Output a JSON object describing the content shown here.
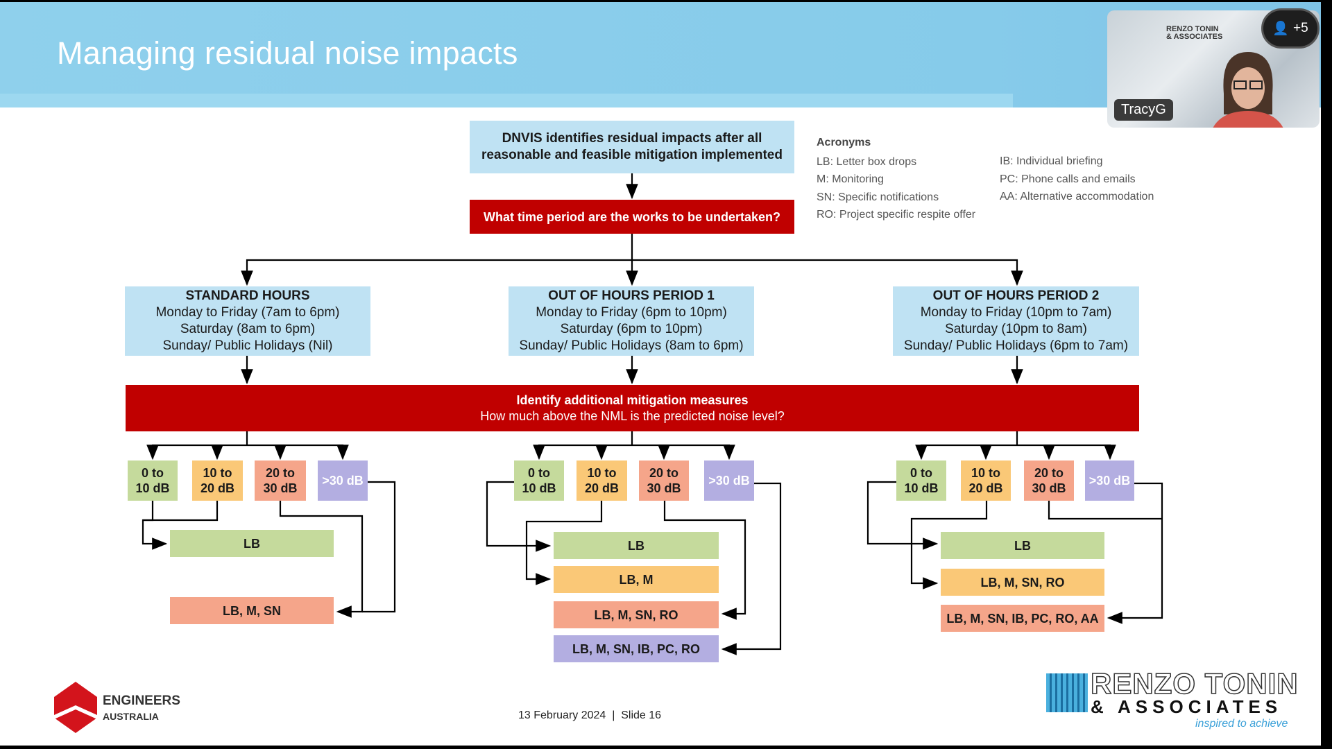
{
  "slide": {
    "title": "Managing residual noise impacts",
    "top_box": "DNVIS identifies residual impacts after all reasonable and feasible mitigation implemented",
    "question": "What time period are the works to be undertaken?",
    "periods": [
      {
        "title": "STANDARD HOURS",
        "lines": [
          "Monday to Friday (7am to 6pm)",
          "Saturday (8am to 6pm)",
          "Sunday/ Public Holidays (Nil)"
        ]
      },
      {
        "title": "OUT OF HOURS PERIOD 1",
        "lines": [
          "Monday to Friday (6pm to 10pm)",
          "Saturday (6pm to 10pm)",
          "Sunday/ Public Holidays (8am to 6pm)"
        ]
      },
      {
        "title": "OUT OF HOURS PERIOD 2",
        "lines": [
          "Monday to Friday (10pm to 7am)",
          "Saturday (10pm to 8am)",
          "Sunday/ Public Holidays (6pm to 7am)"
        ]
      }
    ],
    "mitigation": {
      "title": "Identify additional mitigation measures",
      "subtitle": "How much above the NML is the predicted noise level?"
    },
    "ranges": [
      [
        "0 to",
        "10 dB"
      ],
      [
        "10 to",
        "20 dB"
      ],
      [
        "20 to",
        "30 dB"
      ],
      [
        ">30 dB"
      ]
    ],
    "outcomes": [
      [
        "LB",
        "LB, M, SN"
      ],
      [
        "LB",
        "LB, M",
        "LB, M, SN, RO",
        "LB, M, SN, IB, PC, RO"
      ],
      [
        "LB",
        "LB, M, SN, RO",
        "LB, M, SN, IB, PC, RO, AA"
      ]
    ],
    "acronyms": {
      "heading": "Acronyms",
      "col1": [
        "LB: Letter box drops",
        "M: Monitoring",
        "SN: Specific notifications",
        "RO: Project specific respite offer"
      ],
      "col2": [
        "IB: Individual briefing",
        "PC: Phone calls and emails",
        "AA: Alternative accommodation"
      ]
    },
    "footer": {
      "date": "13 February 2024  |  Slide 16",
      "ea_line1": "ENGINEERS",
      "ea_line2": "AUSTRALIA",
      "rt_line1": "RENZO TONIN",
      "rt_line2": "& ASSOCIATES",
      "rt_tagline": "inspired to achieve"
    }
  },
  "meeting": {
    "participant_name": "TracyG",
    "extra_participants": "+5",
    "video_logo": [
      "RENZO TONIN",
      "& ASSOCIATES"
    ]
  },
  "colors": {
    "red": "#c00000",
    "light_blue": "#bfe2f3",
    "green": "#c5da9c",
    "orange": "#fac877",
    "salmon": "#f5a58a",
    "purple": "#b3aee1"
  }
}
